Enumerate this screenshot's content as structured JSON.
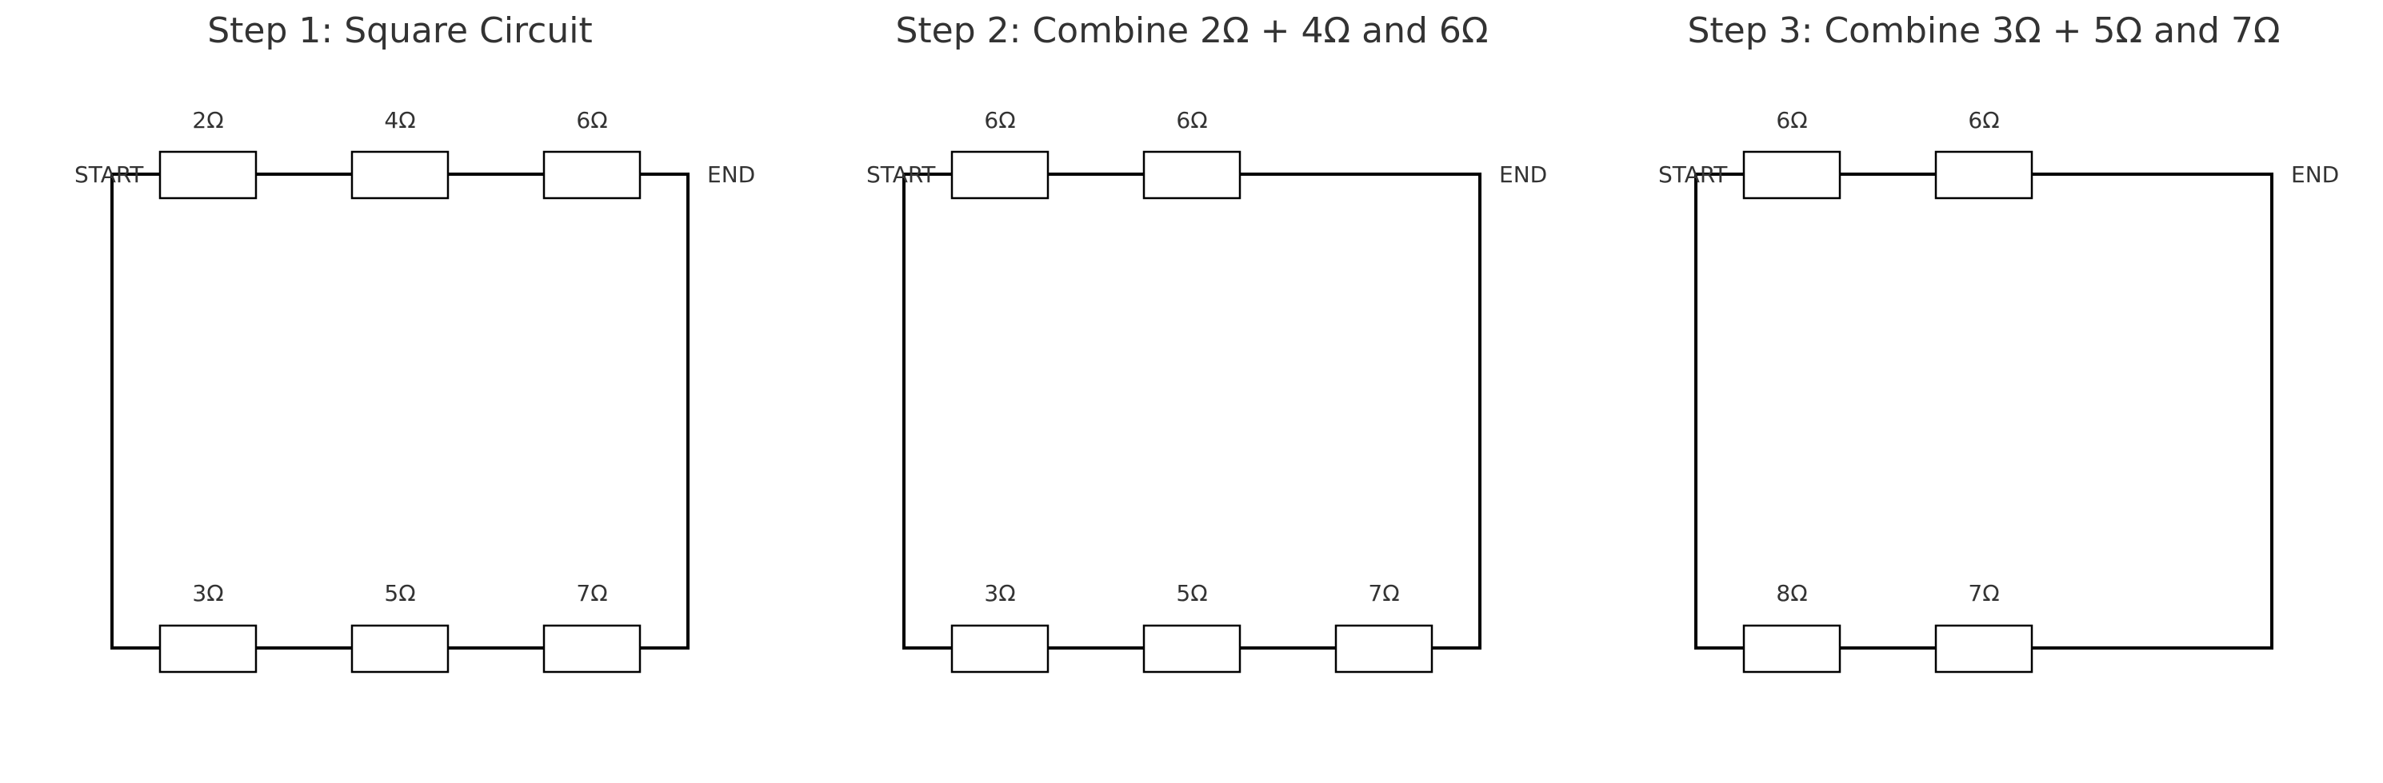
{
  "panels": [
    {
      "title": "Step 1: Square Circuit",
      "start_label": "START",
      "end_label": "END",
      "top_resistors": [
        "2Ω",
        "4Ω",
        "6Ω"
      ],
      "bottom_resistors": [
        "3Ω",
        "5Ω",
        "7Ω"
      ]
    },
    {
      "title": "Step 2: Combine 2Ω + 4Ω and 6Ω",
      "start_label": "START",
      "end_label": "END",
      "top_resistors": [
        "6Ω",
        "6Ω"
      ],
      "bottom_resistors": [
        "3Ω",
        "5Ω",
        "7Ω"
      ]
    },
    {
      "title": "Step 3: Combine 3Ω + 5Ω and 7Ω",
      "start_label": "START",
      "end_label": "END",
      "top_resistors": [
        "6Ω",
        "6Ω"
      ],
      "bottom_resistors": [
        "8Ω",
        "7Ω"
      ]
    }
  ],
  "colors": {
    "wire": "#000000",
    "text": "#333333",
    "background": "#ffffff"
  }
}
